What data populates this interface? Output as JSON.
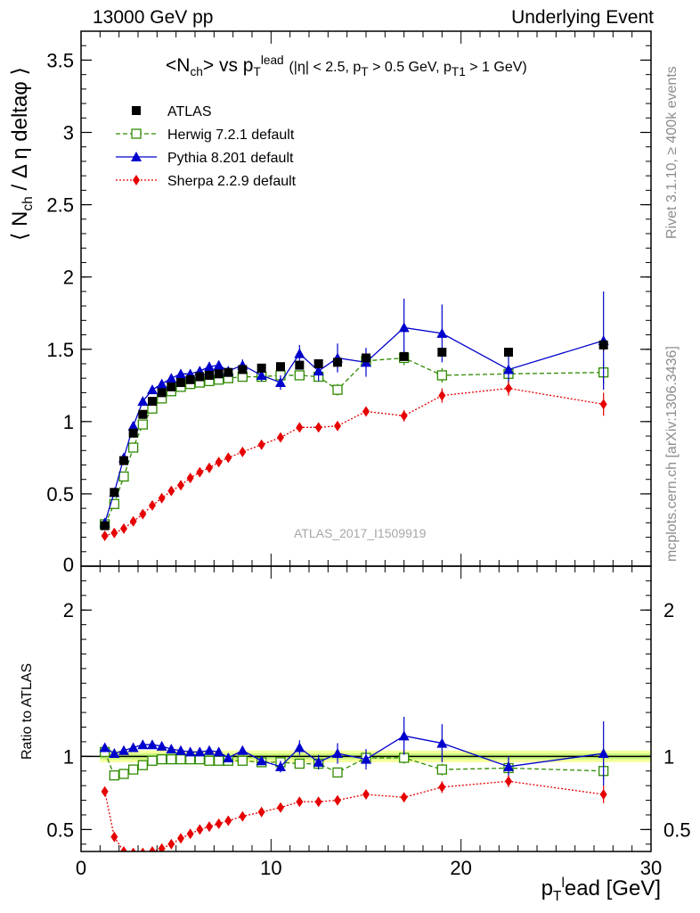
{
  "header": {
    "left": "13000 GeV pp",
    "right": "Underlying Event"
  },
  "side_labels": {
    "rivet": "Rivet 3.1.10, ≥ 400k events",
    "mcplots": "mcplots.cern.ch [arXiv:1306.3436]"
  },
  "title": {
    "main": "<N",
    "main_sub": "ch",
    "main_mid": "> vs p",
    "main_sub2": "T",
    "main_sup2": "lead",
    "cuts_prefix": "(|η| < 2.5, p",
    "cuts_sub1": "T",
    "cuts_mid": " > 0.5 GeV, p",
    "cuts_sub2": "T1",
    "cuts_suffix": " > 1 GeV)"
  },
  "y_label_main": {
    "a": "⟨ N",
    "sub": "ch",
    "b": "/ Δ η deltaφ ⟩"
  },
  "y_label_ratio": "Ratio to ATLAS",
  "x_label": {
    "a": "p",
    "sub": "T",
    "sup": "l",
    "b": "ead [GeV]"
  },
  "watermark": "ATLAS_2017_I1509919",
  "legend": [
    {
      "label": "ATLAS",
      "color": "#000000",
      "marker": "filled-square",
      "line": "none"
    },
    {
      "label": "Herwig 7.2.1 default",
      "color": "#2e8b00",
      "marker": "open-square",
      "line": "dashed"
    },
    {
      "label": "Pythia 8.201 default",
      "color": "#0000cc",
      "marker": "filled-triangle",
      "line": "solid"
    },
    {
      "label": "Sherpa 2.2.9 default",
      "color": "#e60000",
      "marker": "filled-diamond",
      "line": "dotted"
    }
  ],
  "chart_data": [
    {
      "type": "scatter",
      "panel": "main",
      "xlim": [
        0,
        30
      ],
      "ylim": [
        0,
        3.7
      ],
      "yticks": [
        0.5,
        1,
        1.5,
        2,
        2.5,
        3,
        3.5
      ],
      "ytick_labels": [
        "0.5",
        "1",
        "1.5",
        "2",
        "2.5",
        "3",
        "3.5"
      ],
      "bottom_tick_label": "0",
      "series": [
        {
          "name": "ATLAS",
          "x": [
            1.25,
            1.75,
            2.25,
            2.75,
            3.25,
            3.75,
            4.25,
            4.75,
            5.25,
            5.75,
            6.25,
            6.75,
            7.25,
            7.75,
            8.5,
            9.5,
            10.5,
            11.5,
            12.5,
            13.5,
            15,
            17,
            19,
            22.5,
            27.5
          ],
          "y": [
            0.28,
            0.51,
            0.73,
            0.92,
            1.05,
            1.14,
            1.2,
            1.24,
            1.27,
            1.29,
            1.31,
            1.32,
            1.33,
            1.34,
            1.36,
            1.37,
            1.38,
            1.39,
            1.4,
            1.41,
            1.44,
            1.45,
            1.48,
            1.48,
            1.53
          ],
          "err": [
            0.01,
            0.01,
            0.01,
            0.01,
            0.01,
            0.01,
            0.01,
            0.01,
            0.01,
            0.01,
            0.01,
            0.01,
            0.01,
            0.01,
            0.01,
            0.01,
            0.01,
            0.01,
            0.01,
            0.01,
            0.02,
            0.02,
            0.02,
            0.02,
            0.04
          ]
        },
        {
          "name": "Herwig 7.2.1 default",
          "x": [
            1.25,
            1.75,
            2.25,
            2.75,
            3.25,
            3.75,
            4.25,
            4.75,
            5.25,
            5.75,
            6.25,
            6.75,
            7.25,
            7.75,
            8.5,
            9.5,
            10.5,
            11.5,
            12.5,
            13.5,
            15,
            17,
            19,
            22.5,
            27.5
          ],
          "y": [
            0.29,
            0.43,
            0.62,
            0.82,
            0.98,
            1.09,
            1.16,
            1.21,
            1.24,
            1.26,
            1.27,
            1.28,
            1.29,
            1.3,
            1.31,
            1.31,
            1.32,
            1.32,
            1.31,
            1.22,
            1.42,
            1.44,
            1.32,
            1.33,
            1.34
          ],
          "err": [
            0.01,
            0.01,
            0.01,
            0.01,
            0.01,
            0.01,
            0.01,
            0.01,
            0.01,
            0.01,
            0.01,
            0.01,
            0.01,
            0.01,
            0.02,
            0.02,
            0.03,
            0.03,
            0.03,
            0.04,
            0.04,
            0.05,
            0.05,
            0.06,
            0.08
          ]
        },
        {
          "name": "Pythia 8.201 default",
          "x": [
            1.25,
            1.75,
            2.25,
            2.75,
            3.25,
            3.75,
            4.25,
            4.75,
            5.25,
            5.75,
            6.25,
            6.75,
            7.25,
            7.75,
            8.5,
            9.5,
            10.5,
            11.5,
            12.5,
            13.5,
            15,
            17,
            19,
            22.5,
            27.5
          ],
          "y": [
            0.3,
            0.51,
            0.75,
            0.97,
            1.14,
            1.22,
            1.26,
            1.3,
            1.33,
            1.33,
            1.35,
            1.38,
            1.39,
            1.35,
            1.39,
            1.32,
            1.27,
            1.47,
            1.35,
            1.44,
            1.41,
            1.65,
            1.61,
            1.36,
            1.56
          ],
          "err": [
            0.01,
            0.01,
            0.01,
            0.02,
            0.02,
            0.02,
            0.02,
            0.02,
            0.02,
            0.02,
            0.02,
            0.03,
            0.03,
            0.03,
            0.04,
            0.04,
            0.05,
            0.06,
            0.07,
            0.1,
            0.1,
            0.2,
            0.2,
            0.1,
            0.34
          ]
        },
        {
          "name": "Sherpa 2.2.9 default",
          "x": [
            1.25,
            1.75,
            2.25,
            2.75,
            3.25,
            3.75,
            4.25,
            4.75,
            5.25,
            5.75,
            6.25,
            6.75,
            7.25,
            7.75,
            8.5,
            9.5,
            10.5,
            11.5,
            12.5,
            13.5,
            15,
            17,
            19,
            22.5,
            27.5
          ],
          "y": [
            0.21,
            0.23,
            0.26,
            0.31,
            0.36,
            0.42,
            0.47,
            0.52,
            0.56,
            0.61,
            0.65,
            0.68,
            0.72,
            0.75,
            0.79,
            0.84,
            0.89,
            0.96,
            0.96,
            0.97,
            1.07,
            1.04,
            1.18,
            1.23,
            1.12
          ],
          "err": [
            0.01,
            0.01,
            0.01,
            0.01,
            0.01,
            0.01,
            0.01,
            0.01,
            0.01,
            0.01,
            0.01,
            0.01,
            0.01,
            0.01,
            0.02,
            0.02,
            0.02,
            0.02,
            0.03,
            0.03,
            0.03,
            0.04,
            0.05,
            0.05,
            0.08
          ]
        }
      ]
    },
    {
      "type": "scatter",
      "panel": "ratio",
      "xlim": [
        0,
        30
      ],
      "ylim": [
        0.35,
        2.3
      ],
      "yticks": [
        0.5,
        1,
        2
      ],
      "ytick_labels": [
        "0.5",
        "1",
        "2"
      ],
      "xticks": [
        0,
        10,
        20,
        30
      ],
      "xtick_labels": [
        "0",
        "10",
        "20",
        "30"
      ],
      "reference_line": 1,
      "band": {
        "inner": 0.02,
        "outer": 0.04
      },
      "series": [
        {
          "name": "Herwig 7.2.1 default",
          "x": [
            1.25,
            1.75,
            2.25,
            2.75,
            3.25,
            3.75,
            4.25,
            4.75,
            5.25,
            5.75,
            6.25,
            6.75,
            7.25,
            7.75,
            8.5,
            9.5,
            10.5,
            11.5,
            12.5,
            13.5,
            15,
            17,
            19,
            22.5,
            27.5
          ],
          "y": [
            1.03,
            0.87,
            0.88,
            0.91,
            0.94,
            0.97,
            0.98,
            0.98,
            0.98,
            0.98,
            0.98,
            0.97,
            0.97,
            0.97,
            0.97,
            0.96,
            0.96,
            0.95,
            0.95,
            0.89,
            0.99,
            0.99,
            0.91,
            0.92,
            0.9
          ],
          "err": [
            0.01,
            0.01,
            0.01,
            0.01,
            0.01,
            0.01,
            0.01,
            0.01,
            0.01,
            0.01,
            0.01,
            0.01,
            0.01,
            0.01,
            0.02,
            0.02,
            0.02,
            0.02,
            0.02,
            0.03,
            0.03,
            0.04,
            0.04,
            0.04,
            0.06
          ]
        },
        {
          "name": "Pythia 8.201 default",
          "x": [
            1.25,
            1.75,
            2.25,
            2.75,
            3.25,
            3.75,
            4.25,
            4.75,
            5.25,
            5.75,
            6.25,
            6.75,
            7.25,
            7.75,
            8.5,
            9.5,
            10.5,
            11.5,
            12.5,
            13.5,
            15,
            17,
            19,
            22.5,
            27.5
          ],
          "y": [
            1.06,
            1.02,
            1.04,
            1.06,
            1.08,
            1.08,
            1.07,
            1.05,
            1.04,
            1.03,
            1.03,
            1.04,
            1.03,
            0.99,
            1.04,
            0.97,
            0.93,
            1.06,
            0.96,
            1.02,
            0.98,
            1.14,
            1.09,
            0.93,
            1.02
          ],
          "err": [
            0.02,
            0.02,
            0.02,
            0.02,
            0.02,
            0.02,
            0.02,
            0.02,
            0.02,
            0.02,
            0.02,
            0.02,
            0.02,
            0.02,
            0.03,
            0.03,
            0.04,
            0.05,
            0.05,
            0.07,
            0.07,
            0.13,
            0.13,
            0.07,
            0.22
          ]
        },
        {
          "name": "Sherpa 2.2.9 default",
          "x": [
            1.25,
            1.75,
            2.25,
            2.75,
            3.25,
            3.75,
            4.25,
            4.75,
            5.25,
            5.75,
            6.25,
            6.75,
            7.25,
            7.75,
            8.5,
            9.5,
            10.5,
            11.5,
            12.5,
            13.5,
            15,
            17,
            19,
            22.5,
            27.5
          ],
          "y": [
            0.76,
            0.45,
            0.35,
            0.34,
            0.34,
            0.35,
            0.37,
            0.4,
            0.44,
            0.47,
            0.5,
            0.52,
            0.54,
            0.56,
            0.59,
            0.62,
            0.65,
            0.69,
            0.69,
            0.7,
            0.74,
            0.72,
            0.79,
            0.83,
            0.74
          ],
          "err": [
            0.01,
            0.01,
            0.01,
            0.01,
            0.01,
            0.01,
            0.01,
            0.01,
            0.01,
            0.01,
            0.01,
            0.01,
            0.01,
            0.01,
            0.02,
            0.02,
            0.02,
            0.02,
            0.02,
            0.02,
            0.03,
            0.03,
            0.04,
            0.04,
            0.06
          ]
        }
      ]
    }
  ]
}
